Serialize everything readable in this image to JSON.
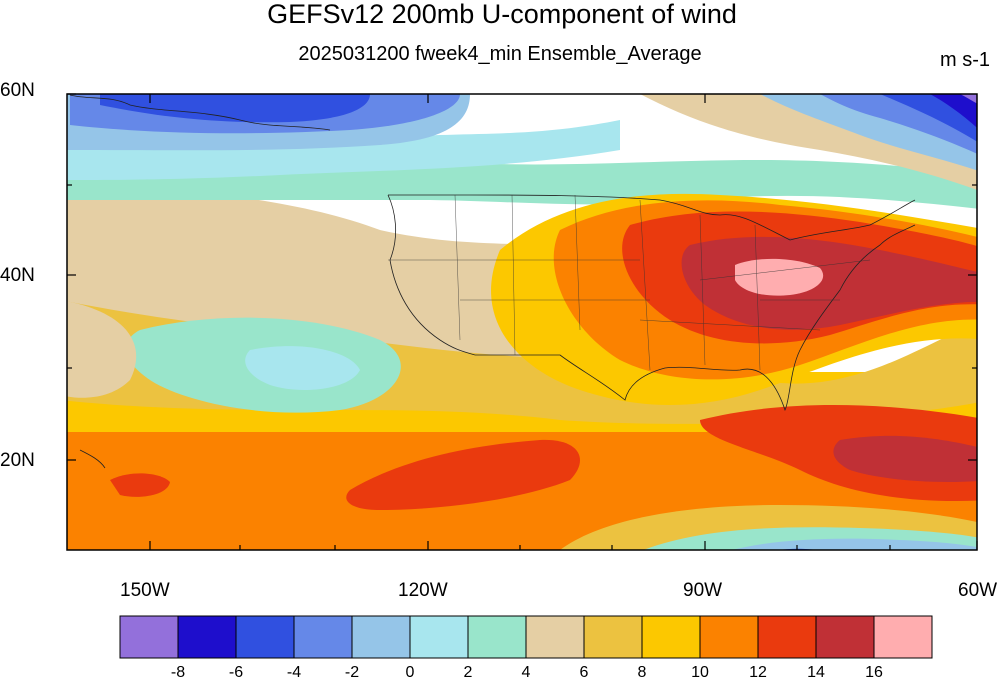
{
  "title": "GEFSv12 200mb U-component of wind",
  "subtitle": "2025031200 fweek4_min Ensemble_Average",
  "units": "m s-1",
  "axes": {
    "lat_labels": [
      "60N",
      "40N",
      "20N"
    ],
    "lon_labels": [
      "150W",
      "120W",
      "90W",
      "60W"
    ]
  },
  "colorbar": {
    "colors": [
      "#9370db",
      "#1e0ecc",
      "#3050e0",
      "#6588e8",
      "#95c5e8",
      "#a8e6ee",
      "#99e5cb",
      "#e5cfa4",
      "#ecc240",
      "#fcc800",
      "#fb8200",
      "#ea3a0e",
      "#c03036",
      "#ffadaf"
    ],
    "labels": [
      "-8",
      "-6",
      "-4",
      "-2",
      "0",
      "2",
      "4",
      "6",
      "8",
      "10",
      "12",
      "14",
      "16"
    ]
  },
  "chart_data": {
    "type": "heatmap",
    "variable": "200mb U-component of wind",
    "units": "m s-1",
    "lat_range": [
      10,
      60
    ],
    "lon_range": [
      -160,
      -60
    ],
    "levels": [
      -8,
      -6,
      -4,
      -2,
      0,
      2,
      4,
      6,
      8,
      10,
      12,
      14,
      16
    ]
  }
}
